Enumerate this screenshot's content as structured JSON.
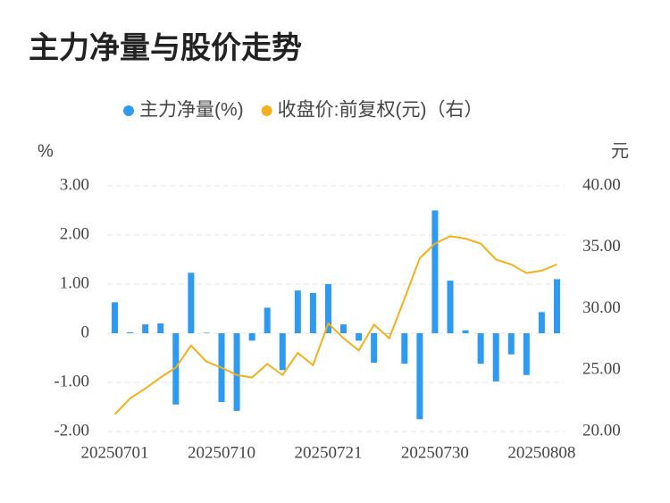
{
  "chart_data": {
    "type": "bar_line",
    "title": "主力净量与股价走势",
    "ylabel": "%",
    "y2label": "元",
    "categories": [
      "20250701",
      null,
      null,
      null,
      null,
      null,
      null,
      "20250710",
      null,
      null,
      null,
      null,
      null,
      null,
      "20250721",
      null,
      null,
      null,
      null,
      null,
      null,
      "20250730",
      null,
      null,
      null,
      null,
      null,
      null,
      "20250808",
      null
    ],
    "series": [
      {
        "name": "主力净量(%)",
        "color": "#2e9bf0",
        "type": "bar",
        "values": [
          0.63,
          0.02,
          0.18,
          0.2,
          -1.45,
          1.23,
          0.01,
          -1.4,
          -1.58,
          -0.15,
          0.52,
          -0.75,
          0.87,
          0.82,
          1.0,
          0.18,
          -0.15,
          -0.6,
          0,
          -0.62,
          -1.75,
          2.5,
          1.07,
          0.06,
          -0.62,
          -0.98,
          -0.43,
          -0.85,
          0.43,
          1.1
        ]
      },
      {
        "name": "收盘价:前复权(元)（右）",
        "color": "#f2b01e",
        "type": "line",
        "axis": "y2",
        "values": [
          21.4,
          22.7,
          23.5,
          24.4,
          25.2,
          27.0,
          25.7,
          25.2,
          24.6,
          24.4,
          25.5,
          24.6,
          26.4,
          25.4,
          28.8,
          27.6,
          26.6,
          28.7,
          27.6,
          30.8,
          34.1,
          35.3,
          35.9,
          35.7,
          35.3,
          34.0,
          33.6,
          32.9,
          33.1,
          33.6
        ]
      }
    ],
    "ylim": [
      -2,
      3
    ],
    "yticks": [
      {
        "value": -2,
        "label": "-2.00"
      },
      {
        "value": -1,
        "label": "-1.00"
      },
      0,
      {
        "value": 1,
        "label": "1.00"
      },
      {
        "value": 2,
        "label": "2.00"
      },
      {
        "value": 3,
        "label": "3.00"
      }
    ],
    "y2lim": [
      20,
      40
    ],
    "y2ticks": [
      {
        "value": 20,
        "label": "20.00"
      },
      {
        "value": 25,
        "label": "25.00"
      },
      {
        "value": 30,
        "label": "30.00"
      },
      {
        "value": 35,
        "label": "35.00"
      },
      {
        "value": 40,
        "label": "40.00"
      }
    ],
    "grid": true
  }
}
